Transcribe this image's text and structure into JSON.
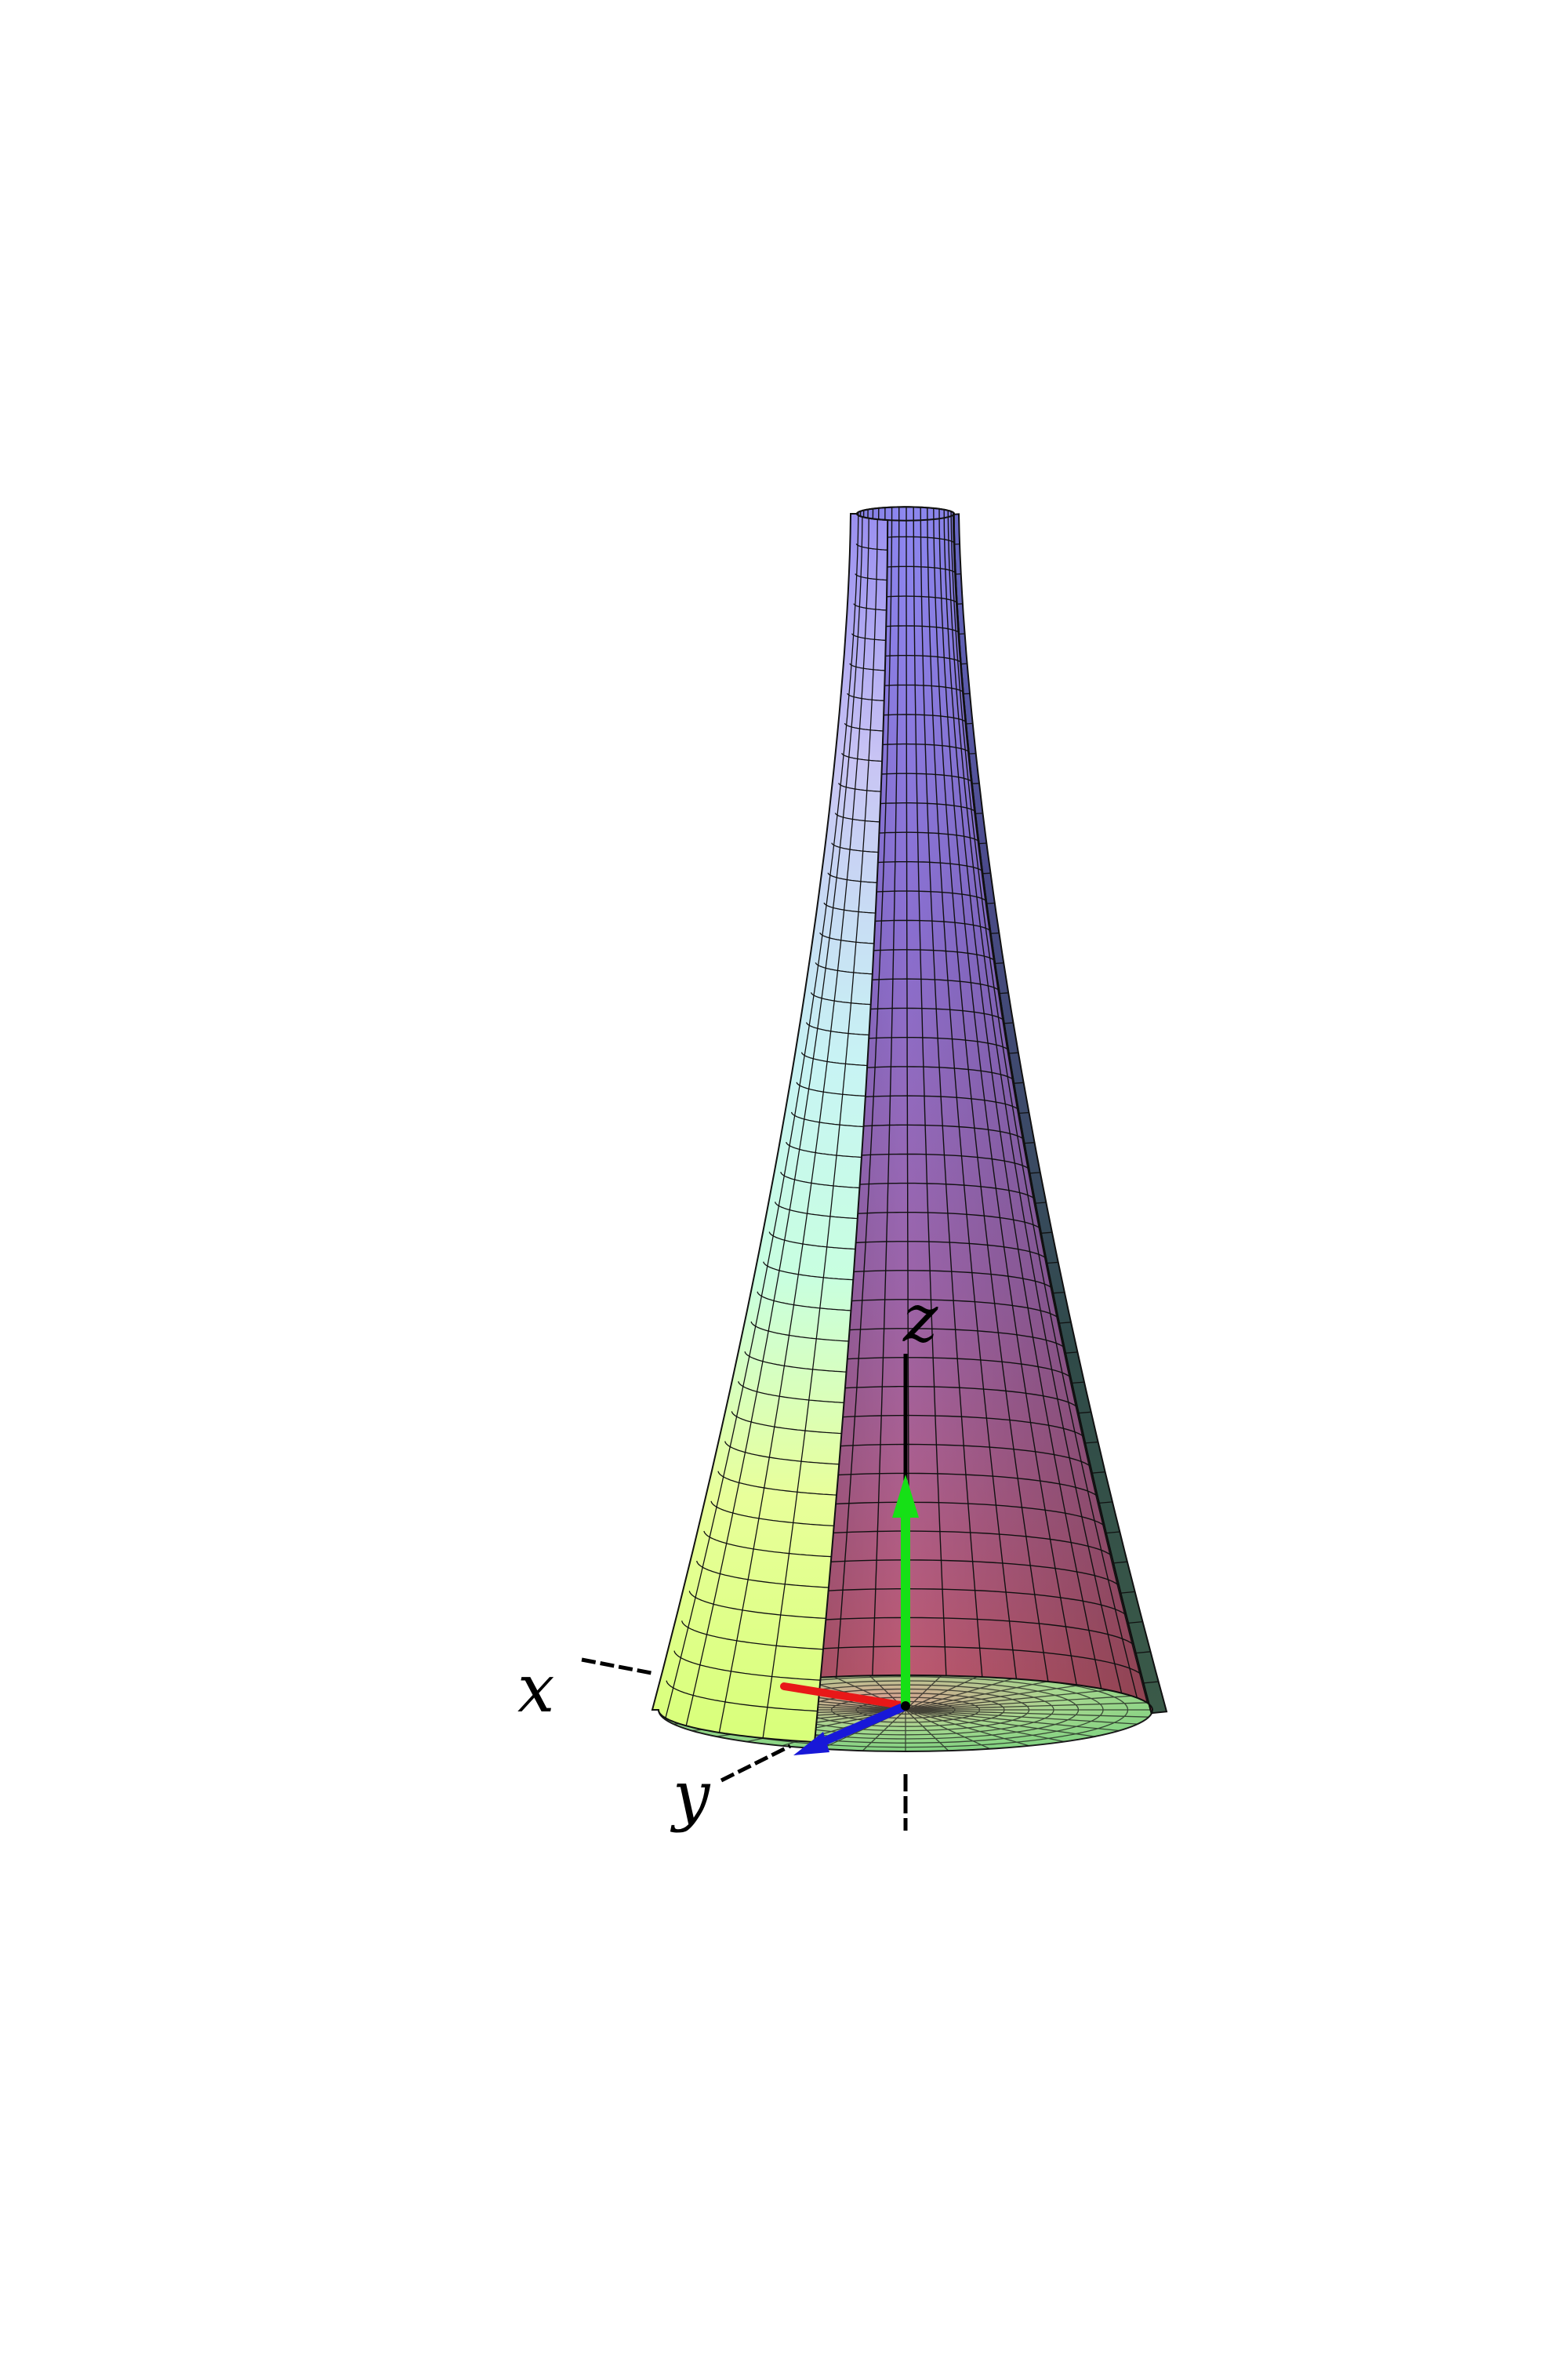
{
  "figure": {
    "axes": {
      "x": {
        "label": "x",
        "color": "#e81818"
      },
      "y": {
        "label": "y",
        "color": "#1818d8"
      },
      "z": {
        "label": "z",
        "color": "#16e016"
      }
    },
    "surface": {
      "shape": "flared-vase-cutaway",
      "color_top": "#8f86f0",
      "color_mid": "#a06ab0",
      "color_inner_low": "#b85a6a",
      "color_outer_left_low": "#e8ff88",
      "color_outer_left_mid": "#b8ffe0",
      "color_outer_right": "#2a3f38",
      "base_disk_color": "#7dd07a"
    }
  }
}
